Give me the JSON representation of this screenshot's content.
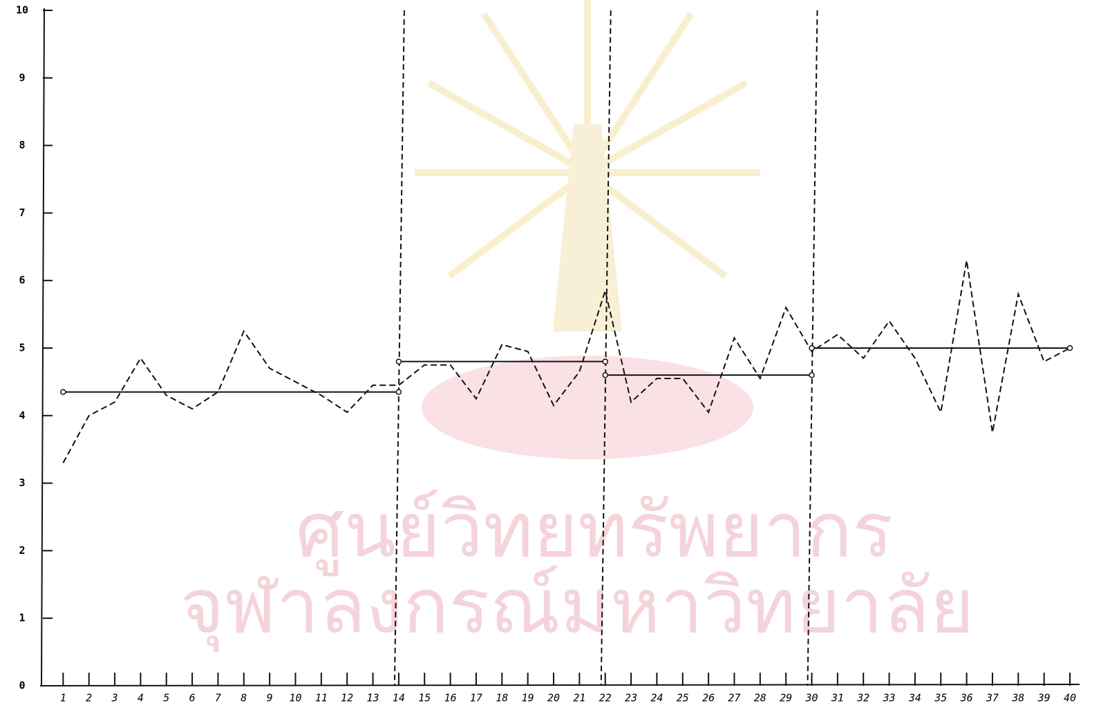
{
  "chart_data": {
    "type": "line",
    "x": [
      1,
      2,
      3,
      4,
      5,
      6,
      7,
      8,
      9,
      10,
      11,
      12,
      13,
      14,
      15,
      16,
      17,
      18,
      19,
      20,
      21,
      22,
      23,
      24,
      25,
      26,
      27,
      28,
      29,
      30,
      31,
      32,
      33,
      34,
      35,
      36,
      37,
      38,
      39,
      40
    ],
    "series": [
      {
        "color": "#111111",
        "style": "dashed",
        "values": [
          3.3,
          4.0,
          4.2,
          4.85,
          4.3,
          4.1,
          4.35,
          5.25,
          4.7,
          4.5,
          4.3,
          4.05,
          4.45,
          4.45,
          4.75,
          4.75,
          4.25,
          5.05,
          4.95,
          4.15,
          4.65,
          5.85,
          4.2,
          4.55,
          4.55,
          4.05,
          5.15,
          4.55,
          5.6,
          4.95,
          5.2,
          4.85,
          5.4,
          4.85,
          4.05,
          6.3,
          3.75,
          5.8,
          4.8,
          5.0
        ]
      }
    ],
    "phase_means": [
      {
        "x": [
          1,
          14
        ],
        "values": [
          4.35,
          4.35
        ]
      },
      {
        "x": [
          14,
          22
        ],
        "values": [
          4.8,
          4.8
        ]
      },
      {
        "x": [
          22,
          30
        ],
        "values": [
          4.6,
          4.6
        ]
      },
      {
        "x": [
          30,
          40
        ],
        "values": [
          5.0,
          5.0
        ]
      }
    ],
    "phase_lines": [
      14,
      22,
      30
    ],
    "xlim": [
      0,
      40
    ],
    "ylim": [
      0,
      10
    ],
    "xticks": [
      1,
      2,
      3,
      4,
      5,
      6,
      7,
      8,
      9,
      10,
      11,
      12,
      13,
      14,
      15,
      16,
      17,
      18,
      19,
      20,
      21,
      22,
      23,
      24,
      25,
      26,
      27,
      28,
      29,
      30,
      31,
      32,
      33,
      34,
      35,
      36,
      37,
      38,
      39,
      40
    ],
    "yticks": [
      0,
      1,
      2,
      3,
      4,
      5,
      6,
      7,
      8,
      9,
      10
    ],
    "watermark": [
      "ศูนย์วิทยทรัพยากร",
      "จุฬาลงกรณ์มหาวิทยาลัย"
    ]
  }
}
